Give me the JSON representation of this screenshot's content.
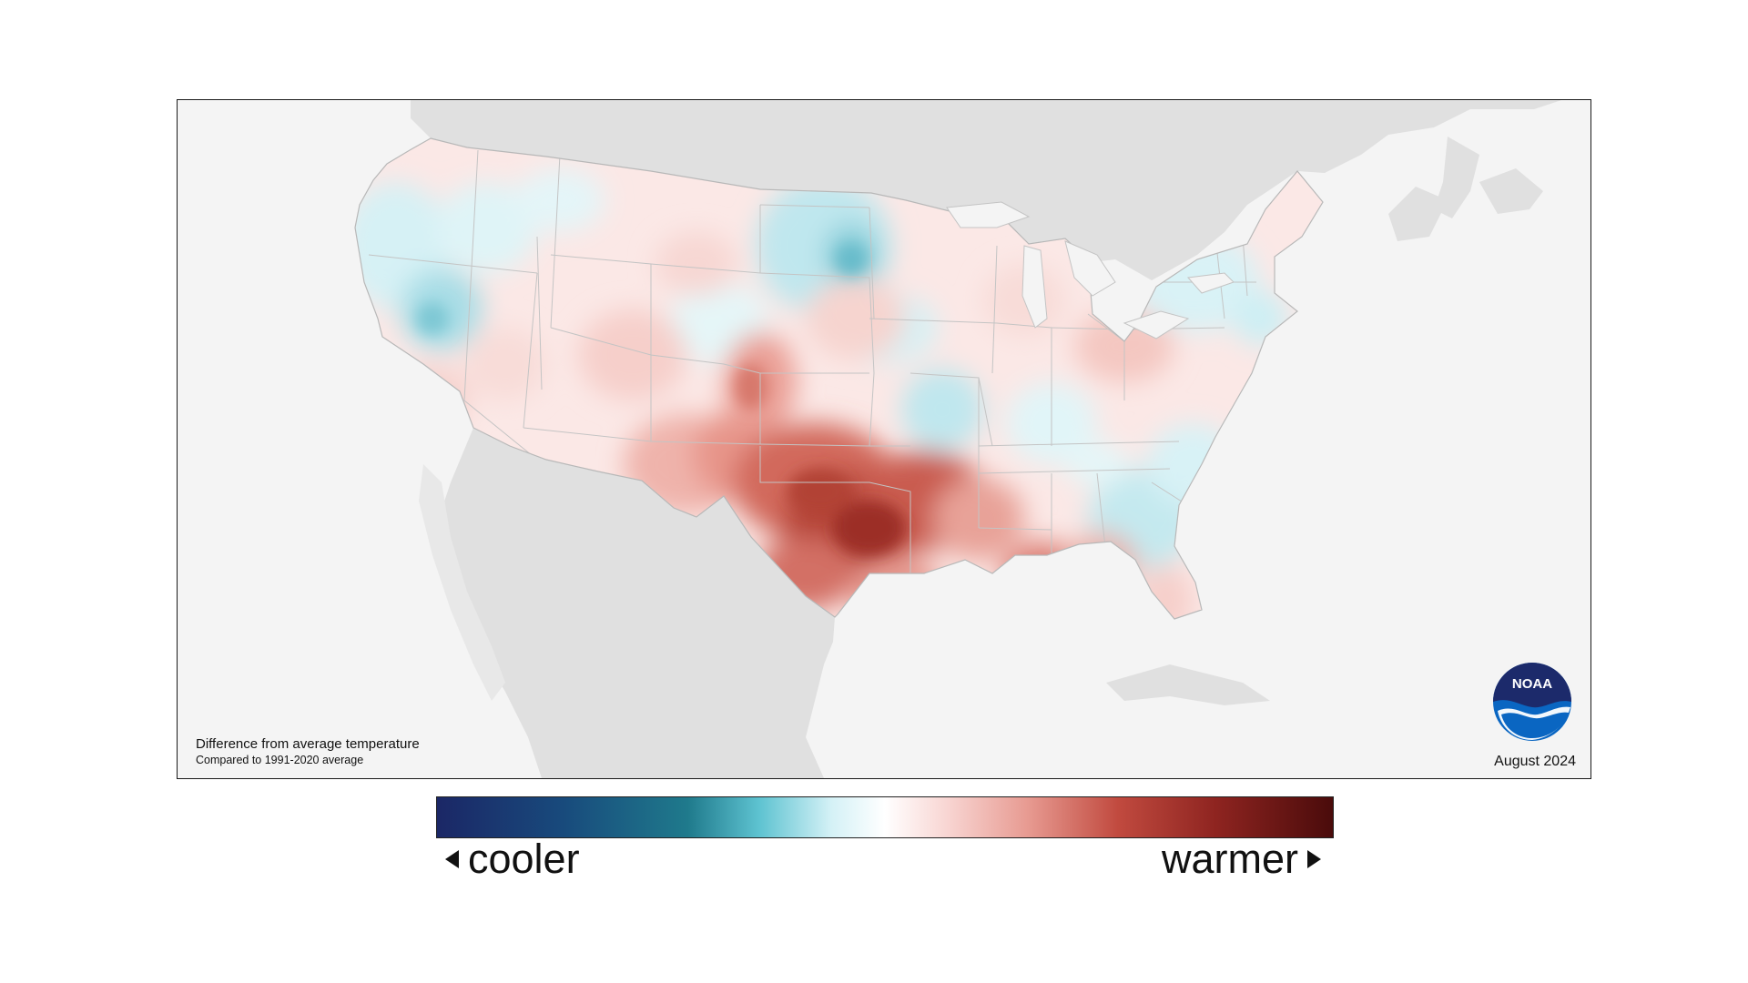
{
  "map": {
    "caption_main": "Difference from average temperature",
    "caption_sub": "Compared to 1991-2020 average",
    "date": "August 2024",
    "logo_text": "NOAA"
  },
  "legend": {
    "left_label": "cooler",
    "right_label": "warmer",
    "colors": [
      "#1b2766",
      "#1f7a8c",
      "#d4f1f6",
      "#ffffff",
      "#f8d5d2",
      "#c14a3f",
      "#4a0b0b"
    ]
  },
  "colors": {
    "land_outside": "#e0e0e0",
    "ocean": "#f4f4f4",
    "base_land": "#fbe8e6"
  }
}
